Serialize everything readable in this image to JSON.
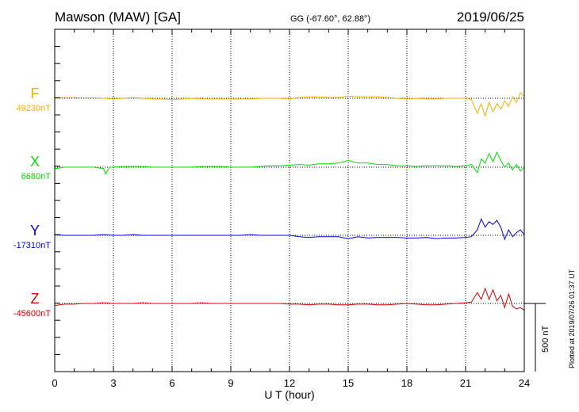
{
  "header": {
    "station": "Mawson (MAW)  [GA]",
    "coords": "GG (-67.60°,  62.88°)",
    "date": "2019/06/25"
  },
  "plotted_note": "Plotted at 2019/07/26 01:37 UT",
  "scale_label": "500 nT",
  "chart_data": {
    "type": "line",
    "title": "Mawson (MAW)  [GA]",
    "xlabel": "U T (hour)",
    "xlim": [
      0,
      24
    ],
    "xticks": [
      "0",
      "3",
      "6",
      "9",
      "12",
      "15",
      "18",
      "21",
      "24"
    ],
    "grid": "vertical dotted at every 3 hours",
    "scale_bar_nT": 500,
    "series": [
      {
        "name": "F",
        "baseline_label": "49230nT",
        "baseline_nT": 49230,
        "color": "#f0b000",
        "x": [
          0,
          0.5,
          1,
          1.5,
          2,
          2.5,
          3,
          3.5,
          4,
          4.5,
          5,
          5.5,
          6,
          6.5,
          7,
          7.5,
          8,
          8.5,
          9,
          9.5,
          10,
          10.5,
          11,
          11.5,
          12,
          12.5,
          13,
          13.5,
          14,
          14.5,
          15,
          15.5,
          16,
          16.5,
          17,
          17.5,
          18,
          18.5,
          19,
          19.5,
          20,
          20.5,
          21,
          21.3,
          21.6,
          21.8,
          22,
          22.2,
          22.4,
          22.6,
          22.8,
          23,
          23.2,
          23.4,
          23.6,
          23.8,
          24
        ],
        "values": [
          0,
          5,
          5,
          3,
          3,
          0,
          -5,
          0,
          5,
          0,
          -5,
          -5,
          -10,
          -5,
          0,
          -5,
          -5,
          -5,
          -5,
          -5,
          -5,
          0,
          0,
          0,
          -5,
          5,
          10,
          10,
          5,
          5,
          15,
          10,
          10,
          10,
          5,
          0,
          -5,
          0,
          -5,
          -5,
          0,
          0,
          0,
          -10,
          -110,
          -40,
          -130,
          -30,
          -100,
          -40,
          -80,
          -20,
          -60,
          10,
          -30,
          40,
          15
        ]
      },
      {
        "name": "X",
        "baseline_label": "6680nT",
        "baseline_nT": 6680,
        "color": "#00dd00",
        "x": [
          0,
          0.5,
          1,
          1.5,
          2,
          2.5,
          2.6,
          2.8,
          3,
          3.5,
          4,
          4.5,
          5,
          5.5,
          6,
          6.5,
          7,
          7.5,
          8,
          8.5,
          9,
          9.5,
          10,
          10.5,
          11,
          11.5,
          12,
          12.5,
          13,
          13.5,
          14,
          14.5,
          15,
          15.5,
          16,
          16.5,
          17,
          17.5,
          18,
          18.5,
          19,
          19.5,
          20,
          20.5,
          21,
          21.3,
          21.6,
          21.8,
          22,
          22.2,
          22.4,
          22.6,
          22.8,
          23,
          23.2,
          23.4,
          23.6,
          23.8,
          24
        ],
        "values": [
          -10,
          0,
          0,
          0,
          0,
          -10,
          -50,
          0,
          0,
          5,
          5,
          5,
          0,
          0,
          0,
          0,
          0,
          5,
          5,
          5,
          0,
          0,
          0,
          5,
          10,
          10,
          15,
          20,
          15,
          25,
          25,
          30,
          50,
          30,
          30,
          20,
          20,
          10,
          10,
          5,
          10,
          10,
          10,
          5,
          10,
          20,
          -40,
          60,
          30,
          100,
          40,
          110,
          50,
          0,
          30,
          -20,
          20,
          -30,
          0
        ]
      },
      {
        "name": "Y",
        "baseline_label": "-17310nT",
        "baseline_nT": -17310,
        "color": "#0000dd",
        "x": [
          0,
          0.5,
          1,
          1.5,
          2,
          2.5,
          3,
          3.5,
          4,
          4.5,
          5,
          5.5,
          6,
          6.5,
          7,
          7.5,
          8,
          8.5,
          9,
          9.5,
          10,
          10.5,
          11,
          11.5,
          12,
          12.5,
          13,
          13.5,
          14,
          14.5,
          15,
          15.5,
          16,
          16.5,
          17,
          17.5,
          18,
          18.5,
          19,
          19.5,
          20,
          20.5,
          21,
          21.3,
          21.6,
          21.8,
          22,
          22.2,
          22.4,
          22.6,
          22.8,
          23,
          23.2,
          23.4,
          23.6,
          23.8,
          24
        ],
        "values": [
          5,
          0,
          0,
          0,
          0,
          5,
          0,
          0,
          5,
          0,
          0,
          0,
          0,
          0,
          0,
          0,
          0,
          0,
          0,
          0,
          5,
          0,
          0,
          0,
          0,
          -10,
          -15,
          -10,
          -10,
          -10,
          -25,
          -10,
          -20,
          -15,
          -15,
          -15,
          -20,
          -20,
          -15,
          -25,
          -20,
          -20,
          -15,
          -10,
          40,
          120,
          60,
          100,
          80,
          110,
          60,
          -30,
          40,
          -10,
          20,
          40,
          5
        ]
      },
      {
        "name": "Z",
        "baseline_label": "-45600nT",
        "baseline_nT": -45600,
        "color": "#dd0000",
        "x": [
          0,
          0.5,
          1,
          1.5,
          2,
          2.5,
          3,
          3.5,
          4,
          4.5,
          5,
          5.5,
          6,
          6.5,
          7,
          7.5,
          8,
          8.5,
          9,
          9.5,
          10,
          10.5,
          11,
          11.5,
          12,
          12.5,
          13,
          13.5,
          14,
          14.5,
          15,
          15.5,
          16,
          16.5,
          17,
          17.5,
          18,
          18.5,
          19,
          19.5,
          20,
          20.5,
          21,
          21.3,
          21.6,
          21.8,
          22,
          22.2,
          22.4,
          22.6,
          22.8,
          23,
          23.2,
          23.4,
          23.6,
          23.8,
          24
        ],
        "values": [
          -15,
          -5,
          -5,
          0,
          0,
          5,
          0,
          0,
          0,
          5,
          0,
          0,
          0,
          0,
          0,
          5,
          0,
          0,
          0,
          0,
          0,
          0,
          0,
          0,
          -5,
          -5,
          -10,
          -5,
          -5,
          -10,
          -10,
          -5,
          -5,
          -10,
          -10,
          -5,
          0,
          -5,
          -10,
          -10,
          -5,
          0,
          5,
          10,
          80,
          30,
          110,
          30,
          100,
          20,
          60,
          -30,
          70,
          -20,
          -40,
          -30,
          -50
        ]
      }
    ]
  }
}
